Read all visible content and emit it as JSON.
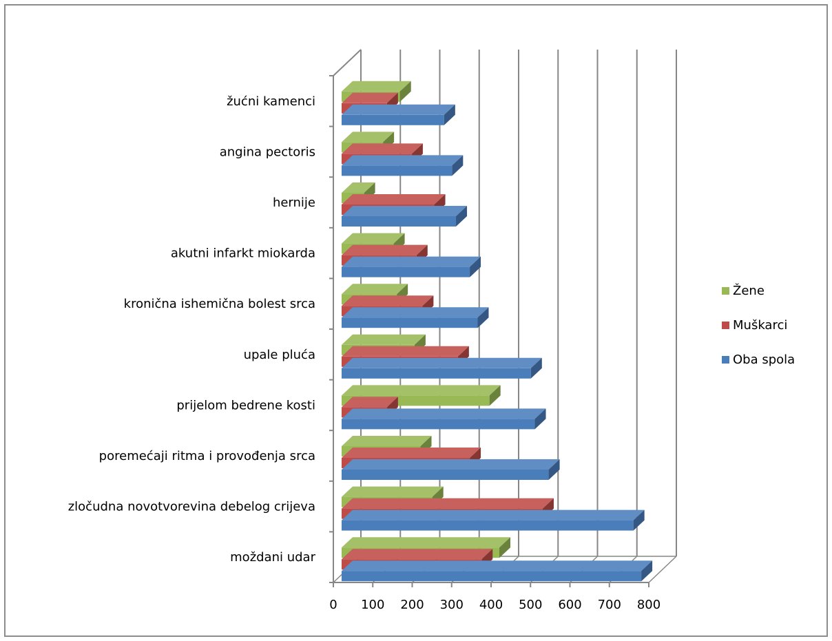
{
  "chart_data": {
    "type": "bar",
    "orientation": "horizontal",
    "style": "3d-clustered",
    "title": "",
    "xlabel": "",
    "ylabel": "",
    "xlim": [
      0,
      800
    ],
    "x_ticks": [
      "0",
      "100",
      "200",
      "300",
      "400",
      "500",
      "600",
      "700",
      "800"
    ],
    "grid": true,
    "legend_position": "right",
    "categories": [
      "moždani udar",
      "zločudna novotvorevina debelog crijeva",
      "poremećaji ritma i provođenja srca",
      "prijelom bedrene kosti",
      "upale pluća",
      "kronična ishemična bolest srca",
      "akutni infarkt miokarda",
      "hernije",
      "angina pectoris",
      "žućni kamenci"
    ],
    "series": [
      {
        "name": "Oba spola",
        "color": "#4a7ebb",
        "values": [
          760,
          740,
          525,
          490,
          480,
          345,
          325,
          290,
          280,
          260
        ]
      },
      {
        "name": "Muškarci",
        "color": "#be4b48",
        "values": [
          355,
          510,
          325,
          115,
          295,
          205,
          190,
          235,
          178,
          115
        ]
      },
      {
        "name": "Žene",
        "color": "#98b954",
        "values": [
          400,
          230,
          200,
          375,
          185,
          140,
          132,
          57,
          105,
          148
        ]
      }
    ],
    "legend": [
      "Žene",
      "Muškarci",
      "Oba spola"
    ]
  }
}
